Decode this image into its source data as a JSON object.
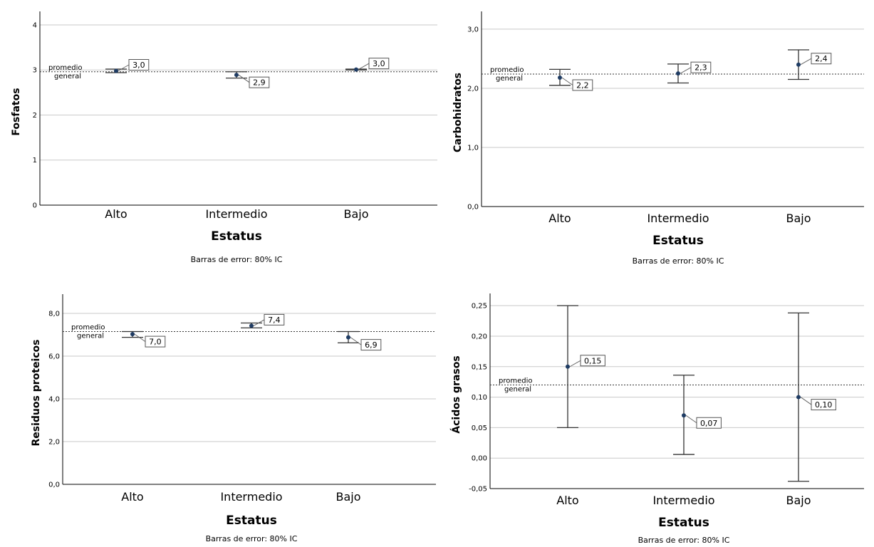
{
  "chart_data": [
    {
      "type": "scatter",
      "ylabel": "Fosfatos",
      "xlabel": "Estatus",
      "note": "Barras de error: 80% IC",
      "reference_line": {
        "label_line1": "promedio",
        "label_line2": "general",
        "value": 2.96
      },
      "categories": [
        "Alto",
        "Intermedio",
        "Bajo"
      ],
      "ylim": [
        0,
        4.3
      ],
      "yticks": [
        0,
        1,
        2,
        3,
        4
      ],
      "ytick_labels": [
        "0",
        "1",
        "2",
        "3",
        "4"
      ],
      "grid": true,
      "means": [
        2.98,
        2.89,
        3.01
      ],
      "ci_low": [
        2.94,
        2.82,
        3.0
      ],
      "ci_high": [
        3.02,
        2.96,
        3.02
      ],
      "data_labels": [
        "3,0",
        "2,9",
        "3,0"
      ]
    },
    {
      "type": "scatter",
      "ylabel": "Carbohidratos",
      "xlabel": "Estatus",
      "note": "Barras de error: 80% IC",
      "reference_line": {
        "label_line1": "promedio",
        "label_line2": "general",
        "value": 2.24
      },
      "categories": [
        "Alto",
        "Intermedio",
        "Bajo"
      ],
      "ylim": [
        0,
        3.3
      ],
      "yticks": [
        0,
        1,
        2,
        3
      ],
      "ytick_labels": [
        "0,0",
        "1,0",
        "2,0",
        "3,0"
      ],
      "grid": true,
      "means": [
        2.18,
        2.25,
        2.4
      ],
      "ci_low": [
        2.05,
        2.09,
        2.15
      ],
      "ci_high": [
        2.32,
        2.41,
        2.65
      ],
      "data_labels": [
        "2,2",
        "2,3",
        "2,4"
      ]
    },
    {
      "type": "scatter",
      "ylabel": "Residuos proteicos",
      "xlabel": "Estatus",
      "note": "Barras de error: 80% IC",
      "reference_line": {
        "label_line1": "promedio",
        "label_line2": "general",
        "value": 7.15
      },
      "categories": [
        "Alto",
        "Intermedio",
        "Bajo"
      ],
      "ylim": [
        0,
        8.9
      ],
      "yticks": [
        0,
        2,
        4,
        6,
        8
      ],
      "ytick_labels": [
        "0,0",
        "2,0",
        "4,0",
        "6,0",
        "8,0"
      ],
      "grid": true,
      "means": [
        7.03,
        7.42,
        6.88
      ],
      "ci_low": [
        6.88,
        7.32,
        6.62
      ],
      "ci_high": [
        7.15,
        7.55,
        7.15
      ],
      "data_labels": [
        "7,0",
        "7,4",
        "6,9"
      ]
    },
    {
      "type": "scatter",
      "ylabel": "Ácidos grasos",
      "xlabel": "Estatus",
      "note": "Barras de error: 80% IC",
      "reference_line": {
        "label_line1": "promedio",
        "label_line2": "general",
        "value": 0.12
      },
      "categories": [
        "Alto",
        "Intermedio",
        "Bajo"
      ],
      "ylim": [
        -0.05,
        0.27
      ],
      "yticks": [
        -0.05,
        0,
        0.05,
        0.1,
        0.15,
        0.2,
        0.25
      ],
      "ytick_labels": [
        "-0,05",
        "0,00",
        "0,05",
        "0,10",
        "0,15",
        "0,20",
        "0,25"
      ],
      "grid": true,
      "means": [
        0.15,
        0.07,
        0.1
      ],
      "ci_low": [
        0.05,
        0.006,
        -0.038
      ],
      "ci_high": [
        0.25,
        0.136,
        0.238
      ],
      "data_labels": [
        "0,15",
        "0,07",
        "0,10"
      ]
    }
  ]
}
